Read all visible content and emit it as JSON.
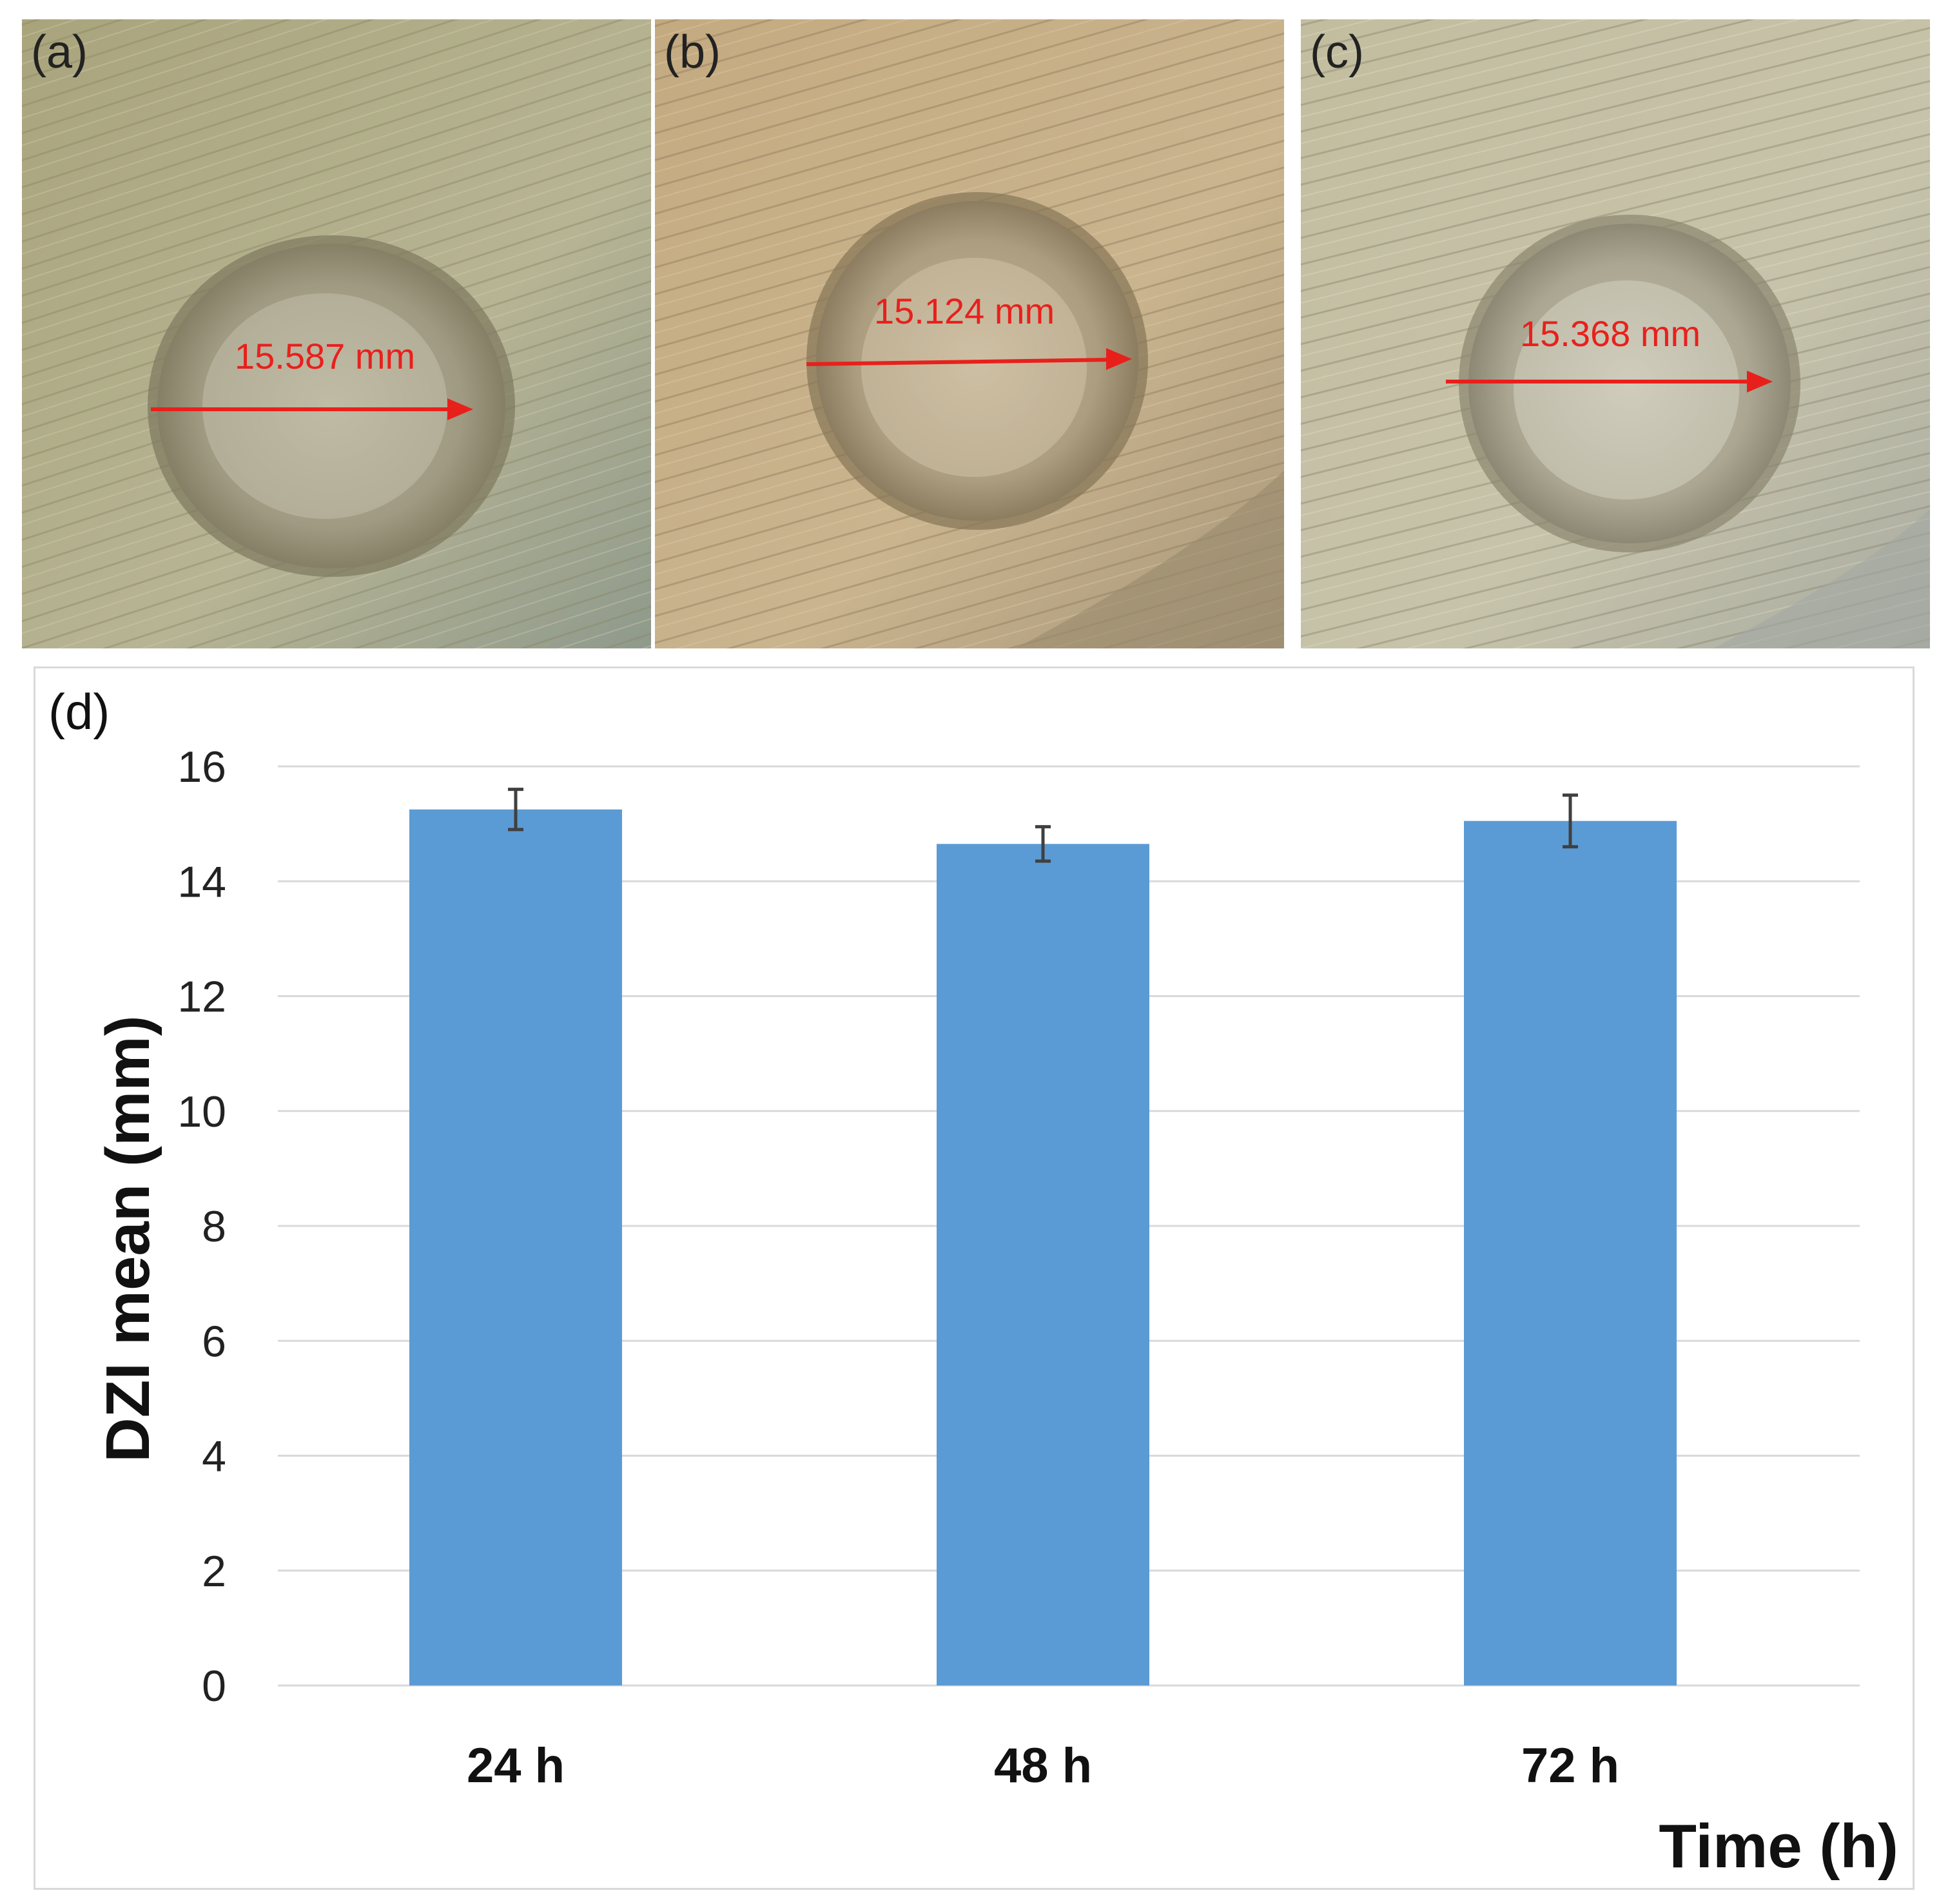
{
  "panels": [
    {
      "label": "(a)",
      "measurement": "15.587 mm",
      "tone": "#b9b38a"
    },
    {
      "label": "(b)",
      "measurement": "15.124 mm",
      "tone": "#c5ae84"
    },
    {
      "label": "(c)",
      "measurement": "15.368 mm",
      "tone": "#c2bd9e"
    }
  ],
  "colors": {
    "bar": "#5b9bd5",
    "error_bar": "#404040",
    "grid": "#d9d9d9",
    "arrow": "#e8201c"
  },
  "chart_data": {
    "type": "bar",
    "panel_label": "(d)",
    "categories": [
      "24 h",
      "48 h",
      "72 h"
    ],
    "values": [
      15.25,
      14.65,
      15.05
    ],
    "error": [
      0.35,
      0.3,
      0.45
    ],
    "title": "",
    "xlabel": "Time (h)",
    "ylabel": "DZI mean (mm)",
    "ylim": [
      0,
      16
    ],
    "yticks": [
      "0",
      "2",
      "4",
      "6",
      "8",
      "10",
      "12",
      "14",
      "16"
    ],
    "grid": true,
    "legend": "none"
  }
}
